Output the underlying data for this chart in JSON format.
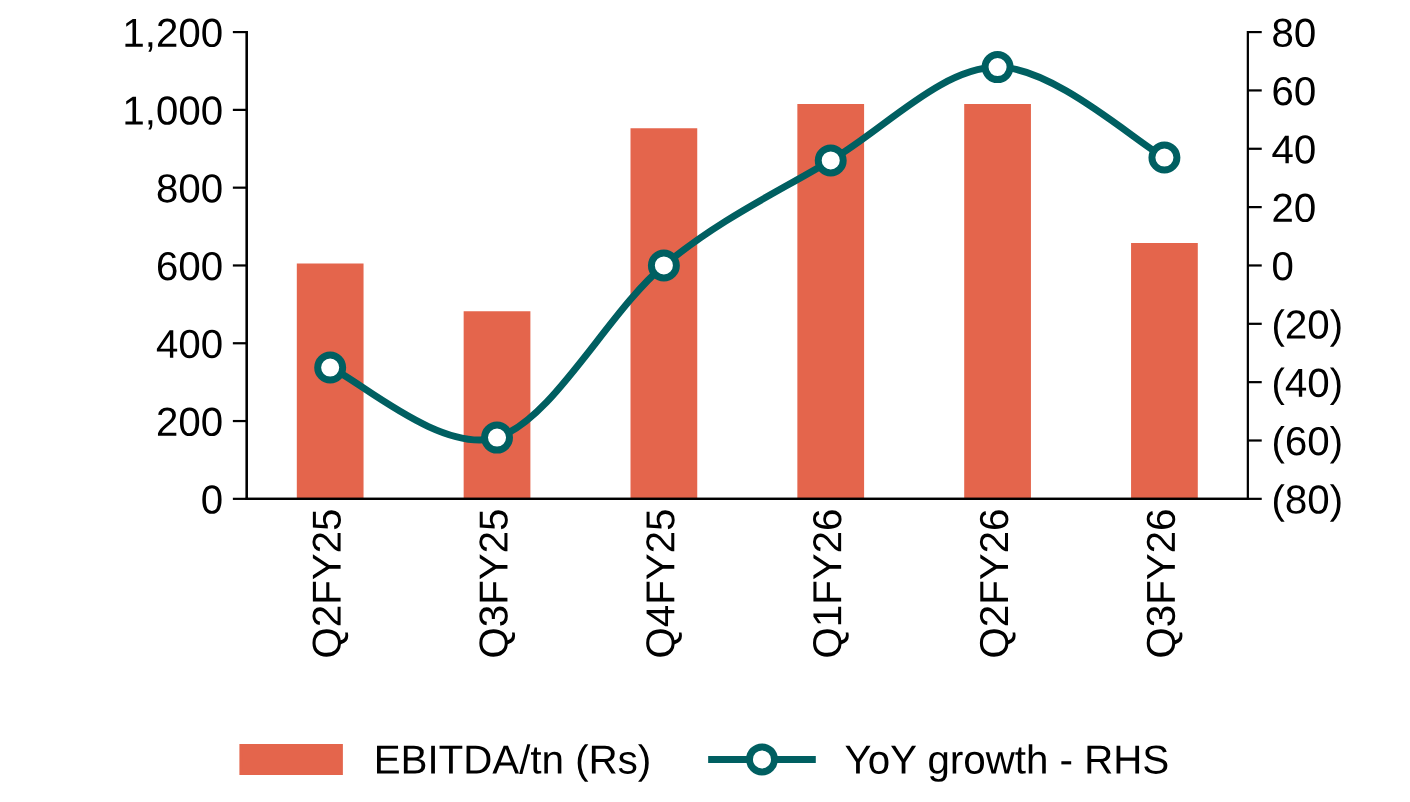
{
  "chart_data": {
    "type": "bar",
    "categories": [
      "Q2FY25",
      "Q3FY25",
      "Q4FY25",
      "Q1FY26",
      "Q2FY26",
      "Q3FY26"
    ],
    "series": [
      {
        "name": "EBITDA/tn (Rs)",
        "color": "#e4654c",
        "values": [
          605,
          482,
          953,
          1015,
          1015,
          658
        ]
      },
      {
        "name": "YoY growth - RHS",
        "type": "line",
        "axis": "y2",
        "color": "#005f61",
        "marker": "circle",
        "values": [
          -35,
          -59,
          0,
          36,
          68,
          37
        ]
      }
    ],
    "ylim": [
      0,
      1200
    ],
    "yticks": [
      0,
      200,
      400,
      600,
      800,
      {
        "value": 1000,
        "label": "1,000"
      },
      {
        "value": 1200,
        "label": "1,200"
      }
    ],
    "y2lim": [
      -80,
      80
    ],
    "y2ticks": [
      {
        "value": -80,
        "label": "(80)"
      },
      {
        "value": -60,
        "label": "(60)"
      },
      {
        "value": -40,
        "label": "(40)"
      },
      {
        "value": -20,
        "label": "(20)"
      },
      0,
      20,
      40,
      60,
      80
    ],
    "grid": false,
    "legend": "bottom"
  }
}
